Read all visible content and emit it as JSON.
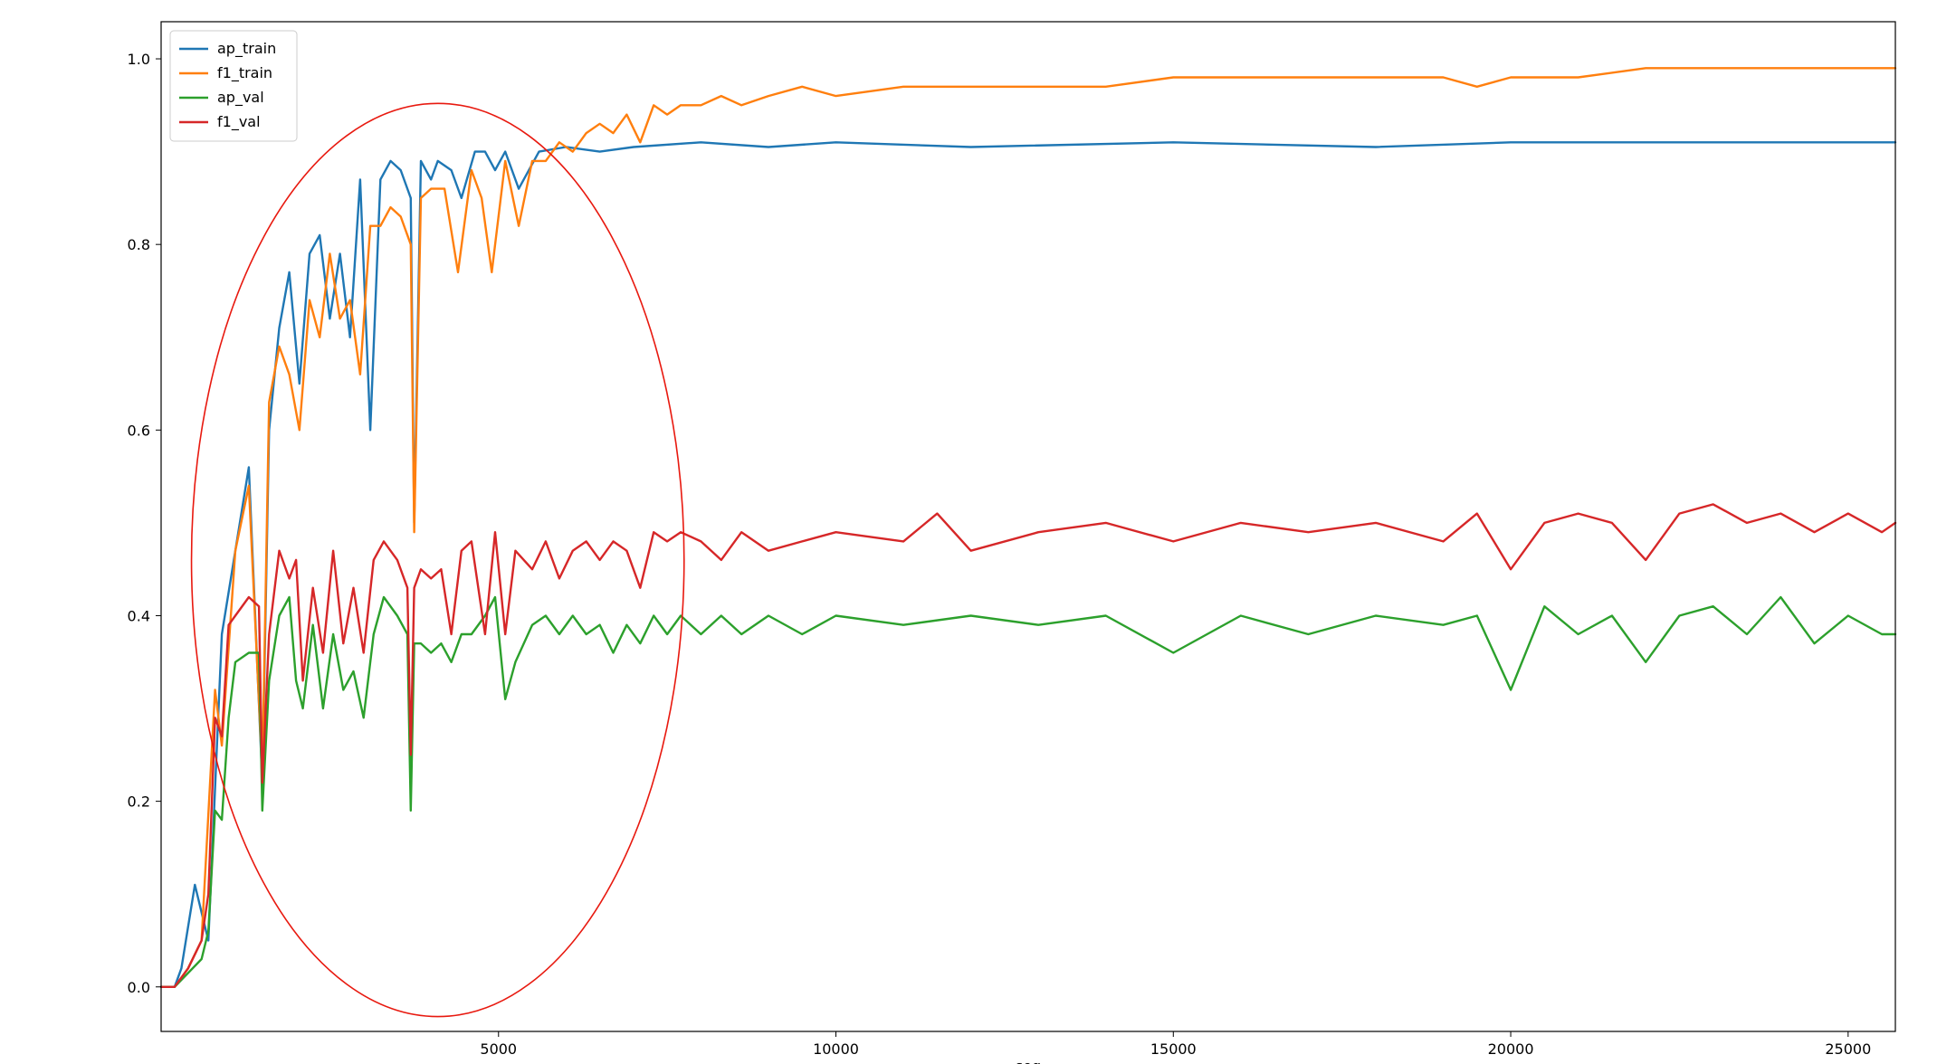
{
  "chart_data": {
    "type": "line",
    "title": "",
    "xlabel": "seq",
    "ylabel": "",
    "xlim": [
      0,
      25700
    ],
    "ylim": [
      -0.048,
      1.04
    ],
    "xticks": [
      5000,
      10000,
      15000,
      20000,
      25000
    ],
    "xtick_labels": [
      "5000",
      "10000",
      "15000",
      "20000",
      "25000"
    ],
    "yticks": [
      0.0,
      0.2,
      0.4,
      0.6,
      0.8,
      1.0
    ],
    "ytick_labels": [
      "0.0",
      "0.2",
      "0.4",
      "0.6",
      "0.8",
      "1.0"
    ],
    "grid": false,
    "legend_position": "upper-left",
    "annotation": {
      "shape": "ellipse",
      "color": "#e8190f",
      "center": [
        4100,
        0.46
      ],
      "radius_x": 3650,
      "radius_y": 0.492
    },
    "series": [
      {
        "name": "ap_train",
        "color": "#1f77b4",
        "x": [
          0,
          200,
          300,
          500,
          700,
          900,
          1100,
          1300,
          1500,
          1600,
          1750,
          1900,
          2050,
          2200,
          2350,
          2500,
          2650,
          2800,
          2950,
          3100,
          3250,
          3400,
          3550,
          3700,
          3750,
          3850,
          4000,
          4100,
          4300,
          4450,
          4650,
          4800,
          4950,
          5100,
          5300,
          5600,
          6000,
          6500,
          7000,
          8000,
          9000,
          10000,
          12000,
          15000,
          18000,
          20000,
          22000,
          25700
        ],
        "values": [
          0.0,
          0.0,
          0.02,
          0.11,
          0.05,
          0.38,
          0.47,
          0.56,
          0.22,
          0.6,
          0.71,
          0.77,
          0.65,
          0.79,
          0.81,
          0.72,
          0.79,
          0.7,
          0.87,
          0.6,
          0.87,
          0.89,
          0.88,
          0.85,
          0.5,
          0.89,
          0.87,
          0.89,
          0.88,
          0.85,
          0.9,
          0.9,
          0.88,
          0.9,
          0.86,
          0.9,
          0.905,
          0.9,
          0.905,
          0.91,
          0.905,
          0.91,
          0.905,
          0.91,
          0.905,
          0.91,
          0.91,
          0.91
        ]
      },
      {
        "name": "f1_train",
        "color": "#ff7f0e",
        "x": [
          0,
          200,
          400,
          600,
          800,
          900,
          1100,
          1300,
          1500,
          1600,
          1750,
          1900,
          2050,
          2200,
          2350,
          2500,
          2650,
          2800,
          2950,
          3100,
          3250,
          3400,
          3550,
          3700,
          3750,
          3850,
          4000,
          4200,
          4400,
          4600,
          4750,
          4900,
          5100,
          5300,
          5500,
          5700,
          5900,
          6100,
          6300,
          6500,
          6700,
          6900,
          7100,
          7300,
          7500,
          7700,
          8000,
          8300,
          8600,
          9000,
          9500,
          10000,
          11000,
          12000,
          13000,
          14000,
          15000,
          16000,
          17000,
          18000,
          19000,
          19500,
          20000,
          20500,
          21000,
          22000,
          23000,
          24000,
          25000,
          25700
        ],
        "values": [
          0.0,
          0.0,
          0.02,
          0.05,
          0.32,
          0.26,
          0.47,
          0.54,
          0.23,
          0.63,
          0.69,
          0.66,
          0.6,
          0.74,
          0.7,
          0.79,
          0.72,
          0.74,
          0.66,
          0.82,
          0.82,
          0.84,
          0.83,
          0.8,
          0.49,
          0.85,
          0.86,
          0.86,
          0.77,
          0.88,
          0.85,
          0.77,
          0.89,
          0.82,
          0.89,
          0.89,
          0.91,
          0.9,
          0.92,
          0.93,
          0.92,
          0.94,
          0.91,
          0.95,
          0.94,
          0.95,
          0.95,
          0.96,
          0.95,
          0.96,
          0.97,
          0.96,
          0.97,
          0.97,
          0.97,
          0.97,
          0.98,
          0.98,
          0.98,
          0.98,
          0.98,
          0.97,
          0.98,
          0.98,
          0.98,
          0.99,
          0.99,
          0.99,
          0.99,
          0.99
        ]
      },
      {
        "name": "ap_val",
        "color": "#2ca02c",
        "x": [
          0,
          200,
          400,
          600,
          700,
          800,
          900,
          1000,
          1100,
          1300,
          1450,
          1500,
          1600,
          1750,
          1900,
          2000,
          2100,
          2250,
          2400,
          2550,
          2700,
          2850,
          3000,
          3150,
          3300,
          3500,
          3650,
          3700,
          3750,
          3850,
          4000,
          4150,
          4300,
          4450,
          4600,
          4800,
          4950,
          5100,
          5250,
          5500,
          5700,
          5900,
          6100,
          6300,
          6500,
          6700,
          6900,
          7100,
          7300,
          7500,
          7700,
          8000,
          8300,
          8600,
          9000,
          9500,
          10000,
          11000,
          12000,
          13000,
          14000,
          15000,
          16000,
          17000,
          18000,
          19000,
          19500,
          20000,
          20500,
          21000,
          21500,
          22000,
          22500,
          23000,
          23500,
          24000,
          24500,
          25000,
          25500,
          25700
        ],
        "values": [
          0.0,
          0.0,
          0.015,
          0.03,
          0.06,
          0.19,
          0.18,
          0.29,
          0.35,
          0.36,
          0.36,
          0.19,
          0.33,
          0.4,
          0.42,
          0.33,
          0.3,
          0.39,
          0.3,
          0.38,
          0.32,
          0.34,
          0.29,
          0.38,
          0.42,
          0.4,
          0.38,
          0.19,
          0.37,
          0.37,
          0.36,
          0.37,
          0.35,
          0.38,
          0.38,
          0.4,
          0.42,
          0.31,
          0.35,
          0.39,
          0.4,
          0.38,
          0.4,
          0.38,
          0.39,
          0.36,
          0.39,
          0.37,
          0.4,
          0.38,
          0.4,
          0.38,
          0.4,
          0.38,
          0.4,
          0.38,
          0.4,
          0.39,
          0.4,
          0.39,
          0.4,
          0.36,
          0.4,
          0.38,
          0.4,
          0.39,
          0.4,
          0.32,
          0.41,
          0.38,
          0.4,
          0.35,
          0.4,
          0.41,
          0.38,
          0.42,
          0.37,
          0.4,
          0.38,
          0.38
        ]
      },
      {
        "name": "f1_val",
        "color": "#d62728",
        "x": [
          0,
          200,
          400,
          600,
          700,
          800,
          900,
          1000,
          1100,
          1300,
          1450,
          1500,
          1600,
          1750,
          1900,
          2000,
          2100,
          2250,
          2400,
          2550,
          2700,
          2850,
          3000,
          3150,
          3300,
          3500,
          3650,
          3700,
          3750,
          3850,
          4000,
          4150,
          4300,
          4450,
          4600,
          4800,
          4950,
          5100,
          5250,
          5500,
          5700,
          5900,
          6100,
          6300,
          6500,
          6700,
          6900,
          7100,
          7300,
          7500,
          7700,
          8000,
          8300,
          8600,
          9000,
          9500,
          10000,
          11000,
          11500,
          12000,
          13000,
          14000,
          15000,
          16000,
          17000,
          18000,
          19000,
          19500,
          20000,
          20500,
          21000,
          21500,
          22000,
          22500,
          23000,
          23500,
          24000,
          24500,
          25000,
          25500,
          25700
        ],
        "values": [
          0.0,
          0.0,
          0.02,
          0.05,
          0.1,
          0.29,
          0.27,
          0.39,
          0.4,
          0.42,
          0.41,
          0.22,
          0.38,
          0.47,
          0.44,
          0.46,
          0.33,
          0.43,
          0.36,
          0.47,
          0.37,
          0.43,
          0.36,
          0.46,
          0.48,
          0.46,
          0.43,
          0.25,
          0.43,
          0.45,
          0.44,
          0.45,
          0.38,
          0.47,
          0.48,
          0.38,
          0.49,
          0.38,
          0.47,
          0.45,
          0.48,
          0.44,
          0.47,
          0.48,
          0.46,
          0.48,
          0.47,
          0.43,
          0.49,
          0.48,
          0.49,
          0.48,
          0.46,
          0.49,
          0.47,
          0.48,
          0.49,
          0.48,
          0.51,
          0.47,
          0.49,
          0.5,
          0.48,
          0.5,
          0.49,
          0.5,
          0.48,
          0.51,
          0.45,
          0.5,
          0.51,
          0.5,
          0.46,
          0.51,
          0.52,
          0.5,
          0.51,
          0.49,
          0.51,
          0.49,
          0.5
        ]
      }
    ]
  }
}
